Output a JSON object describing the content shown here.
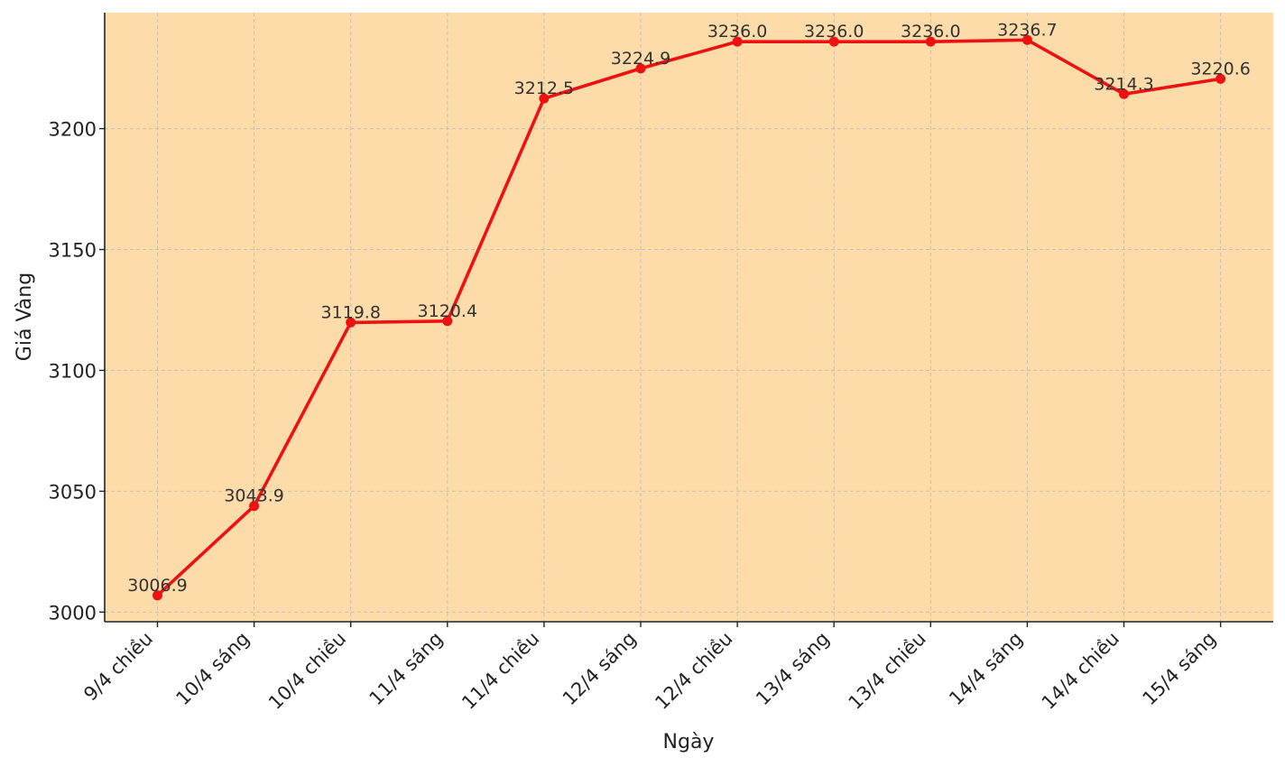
{
  "chart_data": {
    "type": "line",
    "title": "",
    "xlabel": "Ngày",
    "ylabel": "Giá Vàng",
    "categories": [
      "9/4 chiều",
      "10/4 sáng",
      "10/4 chiều",
      "11/4 sáng",
      "11/4 chiều",
      "12/4 sáng",
      "12/4 chiều",
      "13/4 sáng",
      "13/4 chiều",
      "14/4 sáng",
      "14/4 chiều",
      "15/4 sáng"
    ],
    "series": [
      {
        "values": [
          3006.9,
          3043.9,
          3119.8,
          3120.4,
          3212.5,
          3224.9,
          3236.0,
          3236.0,
          3236.0,
          3236.7,
          3214.3,
          3220.6
        ],
        "data_labels": [
          "3006.9",
          "3043.9",
          "3119.8",
          "3120.4",
          "3212.5",
          "3224.9",
          "3236.0",
          "3236.0",
          "3236.0",
          "3236.7",
          "3214.3",
          "3220.6"
        ],
        "color": "#ee1111"
      }
    ],
    "yticks": [
      3000,
      3050,
      3100,
      3150,
      3200
    ],
    "ytick_labels": [
      "3000",
      "3050",
      "3100",
      "3150",
      "3200"
    ],
    "ylim": [
      2996,
      3248
    ],
    "grid": true,
    "legend": "none",
    "background_color": "#fddcaa",
    "grid_color": "#c8c0b2",
    "axis_color": "#222222"
  }
}
